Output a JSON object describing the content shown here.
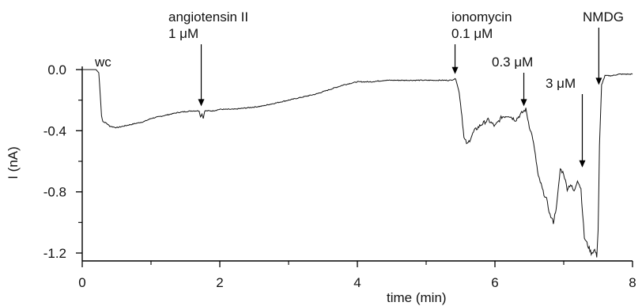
{
  "chart_data": {
    "type": "line",
    "title": "",
    "xlabel": "time (min)",
    "ylabel": "I (nA)",
    "xlim": [
      0,
      8
    ],
    "ylim": [
      -1.2,
      0.0
    ],
    "x_ticks": [
      0,
      2,
      4,
      6,
      8
    ],
    "x_minor_ticks": [
      1,
      3,
      5,
      7
    ],
    "y_ticks": [
      0.0,
      -0.4,
      -0.8,
      -1.2
    ],
    "y_tick_labels": [
      "0.0",
      "-0.4",
      "-0.8",
      "-1.2"
    ],
    "y_minor_ticks": [
      -0.2,
      -0.6,
      -1.0
    ],
    "grid": false,
    "legend": "none",
    "series": [
      {
        "x": [
          0.0,
          0.2,
          0.24,
          0.26,
          0.28,
          0.3,
          0.35,
          0.4,
          0.5,
          0.6,
          0.7,
          0.8,
          0.9,
          1.0,
          1.2,
          1.4,
          1.6,
          1.7,
          1.72,
          1.74,
          1.76,
          1.78,
          1.82,
          1.9,
          2.0,
          2.2,
          2.4,
          2.6,
          2.8,
          3.0,
          3.2,
          3.4,
          3.6,
          3.8,
          4.0,
          4.2,
          4.4,
          4.6,
          4.8,
          5.0,
          5.2,
          5.35,
          5.43,
          5.48,
          5.52,
          5.55,
          5.6,
          5.7,
          5.8,
          5.9,
          6.0,
          6.1,
          6.2,
          6.3,
          6.4,
          6.45,
          6.5,
          6.55,
          6.6,
          6.63,
          6.67,
          6.7,
          6.75,
          6.8,
          6.85,
          6.9,
          6.95,
          7.0,
          7.05,
          7.1,
          7.15,
          7.2,
          7.25,
          7.3,
          7.35,
          7.4,
          7.45,
          7.48,
          7.5,
          7.52,
          7.55,
          7.6,
          7.7,
          7.8,
          7.9,
          8.0
        ],
        "y": [
          0.0,
          0.0,
          -0.02,
          -0.15,
          -0.3,
          -0.34,
          -0.35,
          -0.37,
          -0.38,
          -0.37,
          -0.36,
          -0.35,
          -0.34,
          -0.32,
          -0.3,
          -0.28,
          -0.27,
          -0.27,
          -0.31,
          -0.29,
          -0.32,
          -0.27,
          -0.27,
          -0.27,
          -0.26,
          -0.26,
          -0.25,
          -0.24,
          -0.22,
          -0.2,
          -0.18,
          -0.16,
          -0.13,
          -0.1,
          -0.08,
          -0.08,
          -0.07,
          -0.07,
          -0.07,
          -0.07,
          -0.07,
          -0.07,
          -0.06,
          -0.15,
          -0.3,
          -0.45,
          -0.49,
          -0.4,
          -0.36,
          -0.33,
          -0.37,
          -0.31,
          -0.3,
          -0.33,
          -0.28,
          -0.26,
          -0.37,
          -0.45,
          -0.6,
          -0.7,
          -0.75,
          -0.8,
          -0.85,
          -0.95,
          -1.0,
          -0.88,
          -0.65,
          -0.68,
          -0.78,
          -0.75,
          -0.8,
          -0.72,
          -0.78,
          -1.1,
          -1.15,
          -1.2,
          -1.18,
          -1.22,
          -1.05,
          -0.5,
          -0.1,
          -0.04,
          -0.04,
          -0.03,
          -0.03,
          -0.03
        ]
      }
    ],
    "annotations": [
      {
        "lines": [
          "wc"
        ],
        "x": 0.3,
        "y": 0.02,
        "arrow": false
      },
      {
        "lines": [
          "angiotensin II",
          "1 μM"
        ],
        "x": 1.73,
        "y": -0.24,
        "arrow": true
      },
      {
        "lines": [
          "ionomycin",
          "0.1 μM"
        ],
        "x": 5.42,
        "y": -0.03,
        "arrow": true
      },
      {
        "lines": [
          "0.3 μM"
        ],
        "x": 6.42,
        "y": -0.24,
        "arrow": true
      },
      {
        "lines": [
          "3 μM"
        ],
        "x": 7.27,
        "y": -0.64,
        "arrow": true
      },
      {
        "lines": [
          "NMDG"
        ],
        "x": 7.51,
        "y": -0.1,
        "arrow": true
      }
    ]
  }
}
